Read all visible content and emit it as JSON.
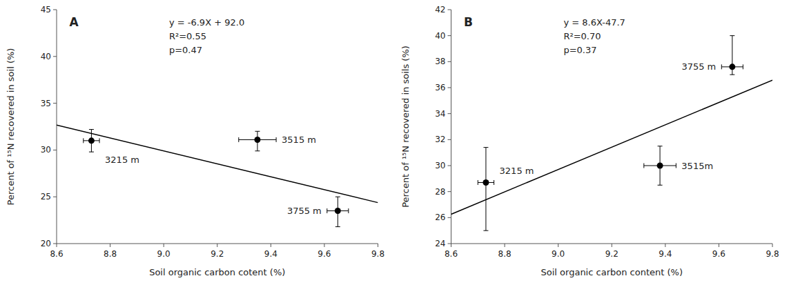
{
  "chart_data": [
    {
      "type": "scatter",
      "title": "A",
      "x_label": "Soil organic carbon cotent (%)",
      "y_label": "Percent of ¹⁵N recovered in soil (%)",
      "xlim": [
        8.6,
        9.8
      ],
      "ylim": [
        20,
        45
      ],
      "xticks": [
        8.6,
        8.8,
        {
          "value": 9.0,
          "label": "9.0"
        },
        9.2,
        9.4,
        9.6,
        9.8
      ],
      "yticks": [
        20,
        25,
        30,
        35,
        40,
        45
      ],
      "grid": false,
      "annotations": [
        "y = -6.9X + 92.0",
        "R²=0.55",
        "p=0.47"
      ],
      "series": [
        {
          "type": "scatter",
          "color": "black",
          "marker": "circle",
          "x": [
            8.73,
            9.35,
            9.65
          ],
          "values": [
            31.0,
            31.1,
            23.5
          ],
          "xerr": [
            0.03,
            0.07,
            0.04
          ],
          "yerr_up": [
            1.2,
            0.9,
            1.5
          ],
          "yerr_down": [
            1.2,
            1.2,
            1.7
          ],
          "labels": [
            "3215 m",
            "3515 m",
            "3755 m"
          ]
        },
        {
          "type": "line",
          "color": "black",
          "x": [
            8.6,
            9.8
          ],
          "values": [
            32.66,
            24.38
          ]
        }
      ]
    },
    {
      "type": "scatter",
      "title": "B",
      "x_label": "Soil organic carbon content (%)",
      "y_label": "Percent of ¹⁵N recovered in soils (%)",
      "xlim": [
        8.6,
        9.8
      ],
      "ylim": [
        24,
        42
      ],
      "xticks": [
        8.6,
        8.8,
        {
          "value": 9.0,
          "label": "9.0"
        },
        9.2,
        9.4,
        9.6,
        9.8
      ],
      "yticks": [
        24,
        26,
        28,
        30,
        32,
        34,
        36,
        38,
        40,
        42
      ],
      "grid": false,
      "annotations": [
        "y = 8.6X-47.7",
        "R²=0.70",
        "p=0.37"
      ],
      "series": [
        {
          "type": "scatter",
          "color": "black",
          "marker": "circle",
          "x": [
            8.73,
            9.38,
            9.65
          ],
          "values": [
            28.7,
            30.0,
            37.6
          ],
          "xerr": [
            0.03,
            0.06,
            0.04
          ],
          "yerr_up": [
            2.7,
            1.5,
            2.4
          ],
          "yerr_down": [
            3.7,
            1.5,
            0.6
          ],
          "labels": [
            "3215 m",
            "3515m",
            "3755 m"
          ]
        },
        {
          "type": "line",
          "color": "black",
          "x": [
            8.6,
            9.8
          ],
          "values": [
            26.26,
            36.58
          ]
        }
      ]
    }
  ]
}
